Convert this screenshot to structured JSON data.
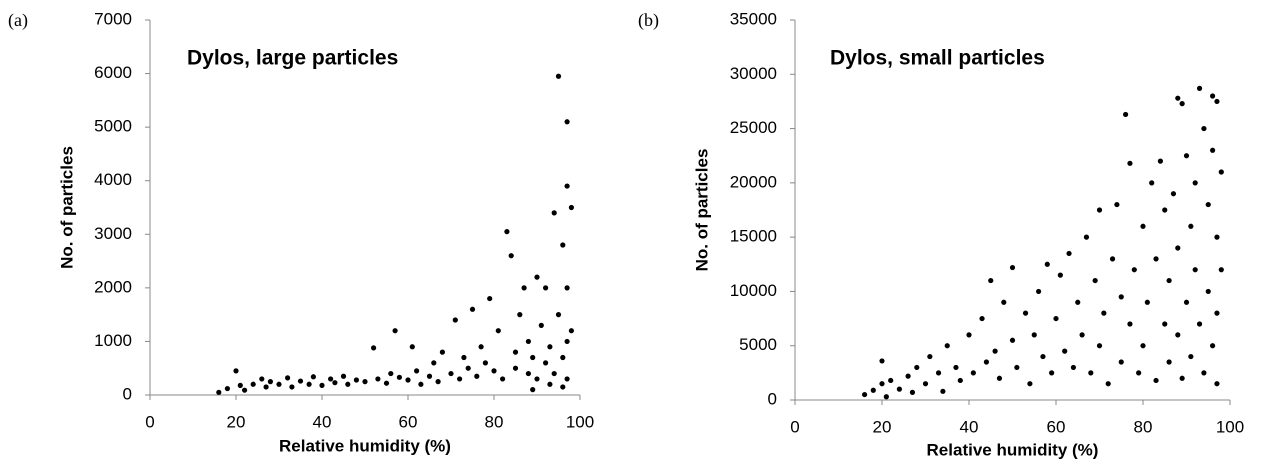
{
  "chart_data": [
    {
      "type": "scatter",
      "panel": "(a)",
      "title": "Dylos, large particles",
      "x_label": "Relative humidity (%)",
      "y_label": "No. of particles",
      "color": "#000000",
      "xlim": [
        0,
        100
      ],
      "xticks": [
        0,
        20,
        40,
        60,
        80,
        100
      ],
      "ylim": [
        0,
        7000
      ],
      "yticks": [
        0,
        1000,
        2000,
        3000,
        4000,
        5000,
        6000,
        7000
      ],
      "x": [
        16,
        18,
        20,
        21,
        22,
        24,
        26,
        27,
        28,
        30,
        32,
        33,
        35,
        37,
        38,
        40,
        42,
        43,
        45,
        46,
        48,
        50,
        52,
        53,
        55,
        56,
        57,
        58,
        60,
        61,
        62,
        63,
        65,
        66,
        67,
        68,
        70,
        71,
        72,
        73,
        74,
        75,
        76,
        77,
        78,
        79,
        80,
        81,
        82,
        83,
        84,
        85,
        85,
        86,
        87,
        88,
        88,
        89,
        90,
        90,
        91,
        92,
        92,
        93,
        94,
        94,
        95,
        95,
        96,
        96,
        97,
        97,
        97,
        97,
        97,
        98,
        98,
        96,
        93,
        89
      ],
      "values": [
        50,
        120,
        450,
        180,
        90,
        200,
        300,
        150,
        250,
        200,
        320,
        150,
        260,
        200,
        340,
        180,
        300,
        230,
        350,
        200,
        280,
        250,
        880,
        300,
        220,
        400,
        1200,
        330,
        280,
        900,
        450,
        200,
        350,
        600,
        250,
        800,
        400,
        1400,
        300,
        700,
        500,
        1600,
        350,
        900,
        600,
        1800,
        450,
        1200,
        300,
        3050,
        2600,
        800,
        500,
        1500,
        2000,
        400,
        1000,
        700,
        2200,
        300,
        1300,
        600,
        2000,
        900,
        3400,
        400,
        5950,
        1500,
        2800,
        700,
        5100,
        3900,
        2000,
        1000,
        300,
        3500,
        1200,
        150,
        200,
        100
      ]
    },
    {
      "type": "scatter",
      "panel": "(b)",
      "title": "Dylos, small particles",
      "x_label": "Relative humidity (%)",
      "y_label": "No. of particles",
      "color": "#000000",
      "xlim": [
        0,
        100
      ],
      "xticks": [
        0,
        20,
        40,
        60,
        80,
        100
      ],
      "ylim": [
        0,
        35000
      ],
      "yticks": [
        0,
        5000,
        10000,
        15000,
        20000,
        25000,
        30000,
        35000
      ],
      "x": [
        16,
        18,
        20,
        20,
        21,
        22,
        24,
        26,
        27,
        28,
        30,
        31,
        33,
        34,
        35,
        37,
        38,
        40,
        41,
        43,
        44,
        45,
        46,
        47,
        48,
        50,
        50,
        51,
        53,
        54,
        55,
        56,
        57,
        58,
        59,
        60,
        61,
        62,
        63,
        64,
        65,
        66,
        67,
        68,
        69,
        70,
        70,
        71,
        72,
        73,
        74,
        75,
        75,
        76,
        77,
        77,
        78,
        79,
        80,
        80,
        81,
        82,
        83,
        83,
        84,
        85,
        85,
        86,
        86,
        87,
        88,
        88,
        88,
        89,
        89,
        90,
        90,
        91,
        91,
        92,
        92,
        93,
        93,
        94,
        94,
        95,
        95,
        96,
        96,
        96,
        97,
        97,
        97,
        97,
        98,
        98
      ],
      "values": [
        500,
        900,
        3600,
        1500,
        300,
        1800,
        1000,
        2200,
        700,
        3000,
        1500,
        4000,
        2500,
        800,
        5000,
        3000,
        1800,
        6000,
        2500,
        7500,
        3500,
        11000,
        4500,
        2000,
        9000,
        12200,
        5500,
        3000,
        8000,
        1500,
        6000,
        10000,
        4000,
        12500,
        2500,
        7500,
        11500,
        4500,
        13500,
        3000,
        9000,
        6000,
        15000,
        2500,
        11000,
        17500,
        5000,
        8000,
        1500,
        13000,
        18000,
        9500,
        3500,
        26300,
        7000,
        21800,
        12000,
        2500,
        16000,
        5000,
        9000,
        20000,
        1800,
        13000,
        22000,
        7000,
        17500,
        3500,
        11000,
        19000,
        27800,
        6000,
        14000,
        27300,
        2000,
        22500,
        9000,
        16000,
        4000,
        20000,
        12000,
        28700,
        7000,
        25000,
        2500,
        18000,
        10000,
        28000,
        23000,
        5000,
        27500,
        15000,
        8000,
        1500,
        21000,
        12000
      ]
    }
  ]
}
